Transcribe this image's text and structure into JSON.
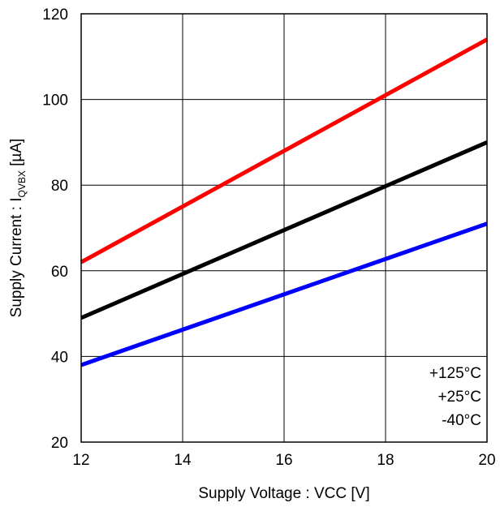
{
  "chart_data": {
    "type": "line",
    "xlabel": "Supply Voltage : VCC [V]",
    "ylabel_main": "Supply Current : I",
    "ylabel_sub": "QVBX",
    "ylabel_unit": " [µA]",
    "xlim": [
      12,
      20
    ],
    "ylim": [
      20,
      120
    ],
    "x_ticks": [
      12,
      14,
      16,
      18,
      20
    ],
    "y_ticks": [
      20,
      40,
      60,
      80,
      100,
      120
    ],
    "grid": true,
    "legend_position": "bottom-right",
    "series": [
      {
        "name": "+125°C",
        "color": "#ff0000",
        "x": [
          12,
          20
        ],
        "y": [
          62,
          114
        ]
      },
      {
        "name": "+25°C",
        "color": "#000000",
        "x": [
          12,
          20
        ],
        "y": [
          49,
          90
        ]
      },
      {
        "name": "-40°C",
        "color": "#0000ff",
        "x": [
          12,
          20
        ],
        "y": [
          38,
          71
        ]
      }
    ]
  }
}
